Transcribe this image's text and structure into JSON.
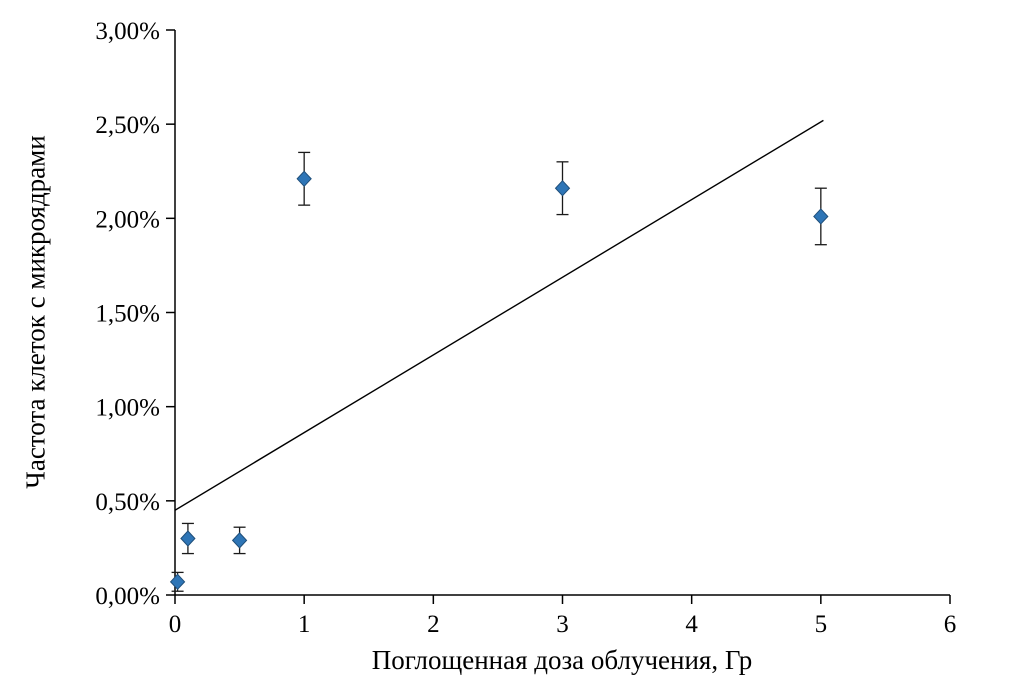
{
  "chart_data": {
    "type": "scatter",
    "title": "",
    "xlabel": "Поглощенная доза облучения, Гр",
    "ylabel": "Частота клеток с микроядрами",
    "xlim": [
      0,
      6
    ],
    "ylim": [
      0,
      3
    ],
    "grid": false,
    "legend": "none",
    "x_ticks": [
      0,
      1,
      2,
      3,
      4,
      5,
      6
    ],
    "x_tick_labels": [
      "0",
      "1",
      "2",
      "3",
      "4",
      "5",
      "6"
    ],
    "y_ticks": [
      0,
      0.5,
      1,
      1.5,
      2,
      2.5,
      3
    ],
    "y_tick_labels": [
      "0,00%",
      "0,50%",
      "1,00%",
      "1,50%",
      "2,00%",
      "2,50%",
      "3,00%"
    ],
    "points": [
      {
        "x": 0.02,
        "y": 0.07,
        "err": 0.05
      },
      {
        "x": 0.1,
        "y": 0.3,
        "err": 0.08
      },
      {
        "x": 0.5,
        "y": 0.29,
        "err": 0.07
      },
      {
        "x": 1.0,
        "y": 2.21,
        "err": 0.14
      },
      {
        "x": 3.0,
        "y": 2.16,
        "err": 0.14
      },
      {
        "x": 5.0,
        "y": 2.01,
        "err": 0.15
      }
    ],
    "trend_line": {
      "x_start": 0,
      "y_start": 0.45,
      "x_end": 5.02,
      "y_end": 2.52
    },
    "colors": {
      "marker_fill": "#2E75B6",
      "marker_edge": "#1F4E79",
      "error_bar": "#1a1a1a",
      "trend": "#000000",
      "axis": "#000000"
    }
  }
}
